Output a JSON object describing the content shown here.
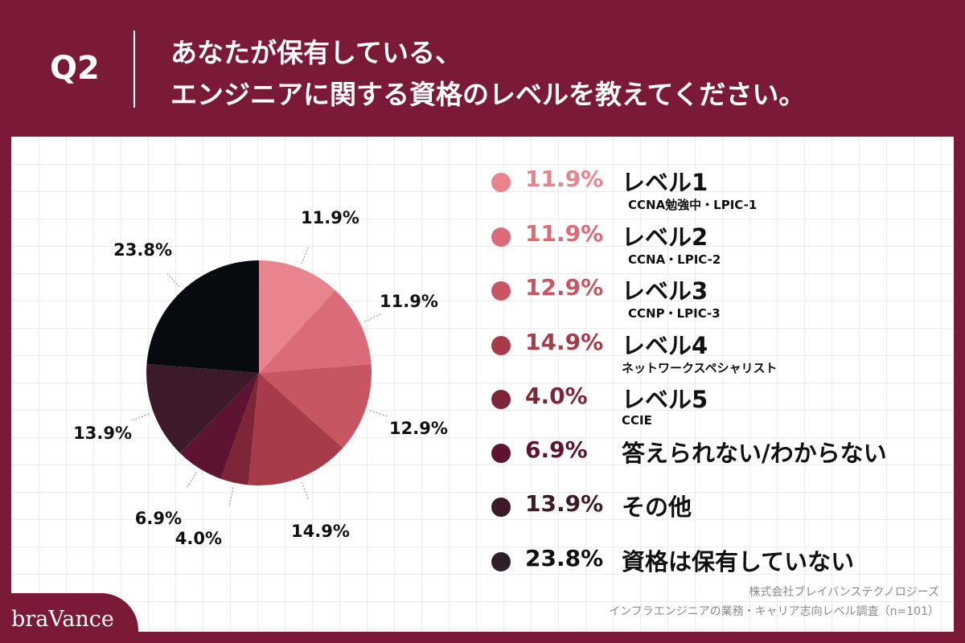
{
  "header": {
    "q_label": "Q2",
    "title_line1": "あなたが保有している、",
    "title_line2": "エンジニアに関する資格のレベルを教えてください。"
  },
  "chart_data": {
    "type": "pie",
    "title": "",
    "series": [
      {
        "labels": [
          "レベル1",
          "レベル2",
          "レベル3",
          "レベル4",
          "レベル5",
          "答えられない/わからない",
          "その他",
          "資格は保有していない"
        ],
        "values": [
          11.9,
          11.9,
          12.9,
          14.9,
          4.0,
          6.9,
          13.9,
          23.8
        ]
      }
    ],
    "value_labels": [
      "11.9%",
      "11.9%",
      "12.9%",
      "14.9%",
      "4.0%",
      "6.9%",
      "13.9%",
      "23.8%"
    ],
    "colors": [
      "#e8848e",
      "#db6b78",
      "#c85662",
      "#a83b4a",
      "#7e2538",
      "#5e1333",
      "#3d1a2a",
      "#070b10"
    ],
    "start_angle": "12 o'clock",
    "direction": "clockwise",
    "legend_position": "right"
  },
  "legend": [
    {
      "pct": "11.9%",
      "name": "レベル1",
      "sub": "CCNA勉強中・LPIC-1",
      "color": "#e8848e",
      "pct_color": "#e8848e"
    },
    {
      "pct": "11.9%",
      "name": "レベル2",
      "sub": "CCNA・LPIC-2",
      "color": "#db6b78",
      "pct_color": "#db6b78"
    },
    {
      "pct": "12.9%",
      "name": "レベル3",
      "sub": "CCNP・LPIC-3",
      "color": "#c85662",
      "pct_color": "#c85662"
    },
    {
      "pct": "14.9%",
      "name": "レベル4",
      "sub": "ネットワークスペシャリスト",
      "color": "#a83b4a",
      "pct_color": "#a83b4a"
    },
    {
      "pct": "4.0%",
      "name": "レベル5",
      "sub": "CCIE",
      "color": "#7e2538",
      "pct_color": "#7e2538"
    },
    {
      "pct": "6.9%",
      "name": "答えられない/わからない",
      "sub": "",
      "color": "#5e1333",
      "pct_color": "#5e1333"
    },
    {
      "pct": "13.9%",
      "name": "その他",
      "sub": "",
      "color": "#3d1a2a",
      "pct_color": "#3d1a2a"
    },
    {
      "pct": "23.8%",
      "name": "資格は保有していない",
      "sub": "",
      "color": "#2e1e2a",
      "pct_color": "#111111"
    }
  ],
  "footer": {
    "company": "株式会社ブレイバンステクノロジーズ",
    "survey": "インフラエンジニアの業務・キャリア志向レベル調査（n=101）",
    "logo": "braVance"
  }
}
